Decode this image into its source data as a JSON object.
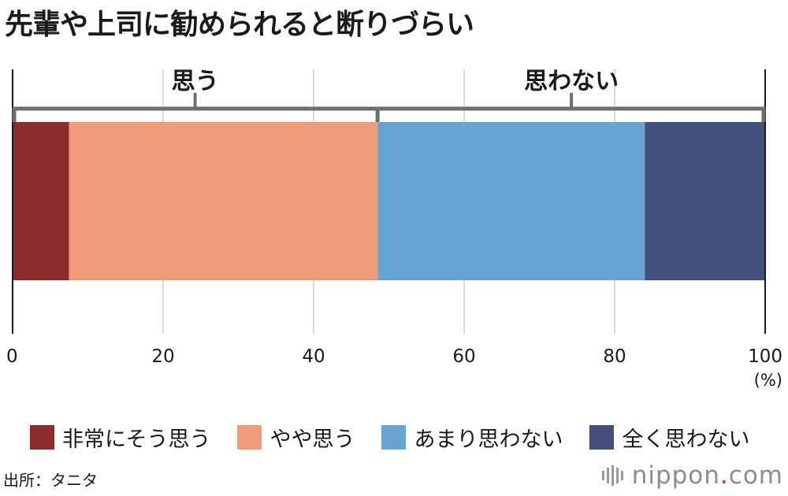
{
  "title": "先輩や上司に勧められると断りづらい",
  "chart_data": {
    "type": "bar",
    "orientation": "horizontal-stacked",
    "title": "先輩や上司に勧められると断りづらい",
    "xlim": [
      0,
      100
    ],
    "x_ticks": [
      "0",
      "20",
      "40",
      "60",
      "80",
      "100"
    ],
    "x_unit": "(%)",
    "grid": true,
    "series": [
      {
        "name": "非常にそう思う",
        "value": 7.5,
        "color": "#8b2b2b"
      },
      {
        "name": "やや思う",
        "value": 41.0,
        "color": "#f19b7b"
      },
      {
        "name": "あまり思わない",
        "value": 35.5,
        "color": "#68a5d2"
      },
      {
        "name": "全く思わない",
        "value": 16.0,
        "color": "#43507e"
      }
    ],
    "groups": [
      {
        "label": "思う",
        "from": 0,
        "to": 48.5
      },
      {
        "label": "思わない",
        "from": 48.5,
        "to": 100
      }
    ],
    "legend_position": "bottom"
  },
  "source": "出所：タニタ",
  "brand": {
    "name": "nippon",
    "dot": ".",
    "tld": "com"
  }
}
